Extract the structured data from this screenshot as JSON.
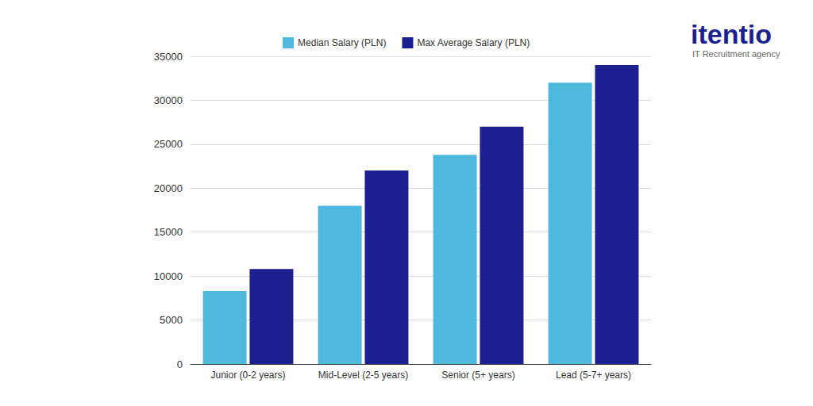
{
  "chart_data": {
    "type": "bar",
    "categories": [
      "Junior (0-2 years)",
      "Mid-Level (2-5 years)",
      "Senior (5+ years)",
      "Lead (5-7+ years)"
    ],
    "series": [
      {
        "name": "Median Salary (PLN)",
        "color": "#4fb9dd",
        "values": [
          8300,
          18000,
          23800,
          32000
        ]
      },
      {
        "name": "Max Average Salary (PLN)",
        "color": "#1b1f8f",
        "values": [
          10800,
          22000,
          27000,
          34000
        ]
      }
    ],
    "ylim": [
      0,
      35000
    ],
    "yticks": [
      0,
      5000,
      10000,
      15000,
      20000,
      25000,
      30000,
      35000
    ],
    "grid": true,
    "legend": "top",
    "annotations": [
      "itentio",
      "IT Recruitment agency"
    ]
  }
}
